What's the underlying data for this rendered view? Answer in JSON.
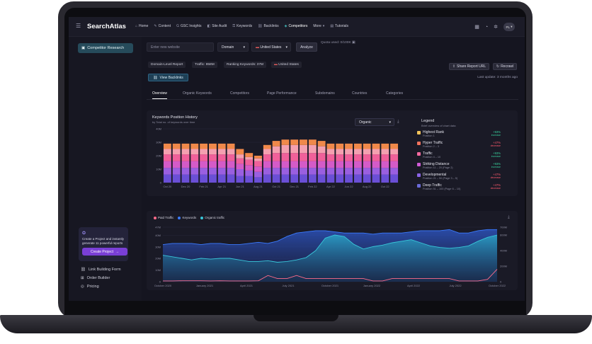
{
  "app": {
    "name": "SearchAtlas"
  },
  "nav": {
    "items": [
      {
        "label": "Home",
        "icon": "home-icon"
      },
      {
        "label": "Content",
        "icon": "pen-icon"
      },
      {
        "label": "GSC Insights",
        "icon": "google-icon"
      },
      {
        "label": "Site Audit",
        "icon": "audit-icon"
      },
      {
        "label": "Keywords",
        "icon": "key-icon"
      },
      {
        "label": "Backlinks",
        "icon": "link-icon"
      },
      {
        "label": "Competitors",
        "icon": "competitors-icon",
        "active": true
      },
      {
        "label": "More",
        "icon": "chevron-down-icon"
      },
      {
        "label": "Tutorials",
        "icon": "book-icon"
      }
    ],
    "avatar": "PL"
  },
  "sidebar": {
    "active_item": "Competitor Research",
    "promo_text": "Create a Project and instantly generate 11 powerful reports",
    "promo_button": "Create Project",
    "links": [
      "Link Building Form",
      "Order Builder",
      "Pricing"
    ]
  },
  "search": {
    "placeholder": "Enter new website",
    "scope": "Domain",
    "country": "United States",
    "analyze": "Analyze",
    "quota": "Quota used: 0/100K"
  },
  "summary": {
    "chips": [
      "Domain-Level Report",
      "Traffic: 858M",
      "Ranking Keywords: 37M",
      "United States"
    ],
    "share": "Share Report URL",
    "recrawl": "Recrawl",
    "updated": "Last update: 3 months ago",
    "view_backlinks": "View Backlinks"
  },
  "tabs": [
    "Overview",
    "Organic Keywords",
    "Competitors",
    "Page Performance",
    "Subdomains",
    "Countries",
    "Categories"
  ],
  "kph": {
    "title": "Keywords Position History",
    "subtitle": "by Total no. of keywords over time",
    "dropdown": "Organic",
    "legend_title": "Legend",
    "legend_subtitle": "Brief overview of chart data",
    "legend": [
      {
        "name": "Highest Rank",
        "pos": "Position 1",
        "pct": "+93%",
        "dir": "increase",
        "color": "#f2c35a",
        "pct_color": "#38d39f"
      },
      {
        "name": "Hyper Traffic",
        "pos": "Position 2 – 3",
        "pct": "+47%",
        "dir": "decrease",
        "color": "#f2735d",
        "pct_color": "#ff5a6e"
      },
      {
        "name": "Traffic",
        "pos": "Position 4 – 10",
        "pct": "+93%",
        "dir": "increase",
        "color": "#f56aa0",
        "pct_color": "#38d39f"
      },
      {
        "name": "Striking Distance",
        "pos": "Position 11 – 20 (Page 2)",
        "pct": "+93%",
        "dir": "increase",
        "color": "#d05bd6",
        "pct_color": "#38d39f"
      },
      {
        "name": "Developmental",
        "pos": "Position 21 – 50 (Page 3 – 5)",
        "pct": "+47%",
        "dir": "decrease",
        "color": "#8a63e6",
        "pct_color": "#ff5a6e"
      },
      {
        "name": "Deep Traffic",
        "pos": "Position 51 – 100 (Page 6 – 10)",
        "pct": "+47%",
        "dir": "decrease",
        "color": "#6a6ad8",
        "pct_color": "#ff5a6e"
      }
    ]
  },
  "traffic": {
    "legend": [
      {
        "name": "Paid Traffic",
        "color": "#ff6b8a"
      },
      {
        "name": "Keywords",
        "color": "#3b7bff"
      },
      {
        "name": "Organic traffic",
        "color": "#38c6d9"
      }
    ]
  },
  "chart_data": [
    {
      "type": "bar",
      "title": "Keywords Position History",
      "categories": [
        "Oct 20",
        "",
        "Dec 20",
        "",
        "Feb 21",
        "",
        "Apr 21",
        "",
        "Jun 21",
        "",
        "Aug 21",
        "",
        "Oct 21",
        "",
        "Dec 21",
        "",
        "Feb 22",
        "",
        "Apr 22",
        "",
        "Jun 22",
        "",
        "Aug 22",
        "",
        "Oct 22",
        ""
      ],
      "x_ticks": [
        "Oct 20",
        "Dec 20",
        "Feb 21",
        "Apr 21",
        "Jun 21",
        "Aug 21",
        "Oct 21",
        "Dec 21",
        "Feb 22",
        "Apr 22",
        "Jun 22",
        "Aug 22",
        "Oct 22"
      ],
      "y_ticks": [
        "0",
        "10M",
        "20M",
        "30M",
        "40M"
      ],
      "ylim": [
        0,
        40
      ],
      "stacked": true,
      "series": [
        {
          "name": "Deep Traffic",
          "color": "#6a4fd6",
          "values": [
            6,
            6,
            6,
            6,
            6,
            6,
            6,
            6,
            5,
            5,
            4,
            6,
            6,
            6,
            6,
            6,
            6,
            6,
            6,
            6,
            6,
            6,
            6,
            6,
            6,
            6
          ]
        },
        {
          "name": "Developmental",
          "color": "#9a5fe0",
          "values": [
            5,
            5,
            5,
            5,
            5,
            5,
            5,
            5,
            5,
            4,
            4,
            5,
            5,
            5,
            5,
            5,
            5,
            5,
            5,
            5,
            5,
            5,
            5,
            5,
            5,
            5
          ]
        },
        {
          "name": "Striking Distance",
          "color": "#d45bc8",
          "values": [
            5,
            5,
            5,
            5,
            5,
            5,
            5,
            5,
            4,
            4,
            4,
            5,
            5,
            5,
            5,
            5,
            5,
            5,
            5,
            5,
            5,
            5,
            5,
            5,
            5,
            5
          ]
        },
        {
          "name": "Traffic",
          "color": "#f0609a",
          "values": [
            5,
            5,
            5,
            5,
            5,
            5,
            5,
            5,
            4,
            4,
            4,
            5,
            6,
            6,
            6,
            6,
            6,
            6,
            5,
            5,
            5,
            5,
            5,
            5,
            5,
            5
          ]
        },
        {
          "name": "Hyper Traffic",
          "color": "#f4a0b0",
          "values": [
            4,
            4,
            4,
            4,
            4,
            4,
            4,
            4,
            3,
            2,
            2,
            4,
            5,
            6,
            6,
            6,
            6,
            5,
            4,
            4,
            4,
            4,
            4,
            4,
            4,
            4
          ]
        },
        {
          "name": "Highest Rank",
          "color": "#f0894a",
          "values": [
            4,
            4,
            4,
            4,
            4,
            4,
            4,
            4,
            4,
            3,
            2,
            3,
            4,
            4,
            4,
            4,
            4,
            4,
            4,
            4,
            4,
            4,
            4,
            4,
            4,
            4
          ]
        }
      ]
    },
    {
      "type": "area",
      "x_ticks": [
        "October 2020",
        "January 2021",
        "April 2021",
        "July 2021",
        "October 2021",
        "January 2022",
        "April 2022",
        "July 2022",
        "October 2022"
      ],
      "y_ticks_left": [
        "0",
        "10M",
        "20M",
        "30M",
        "40M",
        "47M"
      ],
      "y_ticks_right": [
        "0",
        "200M",
        "400M",
        "600M",
        "700M"
      ],
      "ylim_left": [
        0,
        47
      ],
      "ylim_right": [
        0,
        700
      ],
      "series": [
        {
          "name": "Keywords",
          "axis": "left",
          "values": [
            32,
            33,
            33,
            33,
            32,
            33,
            33,
            32,
            32,
            33,
            34,
            33,
            35,
            39,
            42,
            43,
            44,
            44,
            43,
            42,
            42,
            42,
            41,
            42,
            42,
            42,
            43,
            44,
            44,
            44,
            45,
            42,
            42,
            44,
            45,
            45
          ]
        },
        {
          "name": "Organic traffic",
          "axis": "right",
          "values": [
            340,
            320,
            300,
            280,
            300,
            290,
            300,
            300,
            280,
            260,
            260,
            270,
            250,
            260,
            280,
            310,
            400,
            560,
            600,
            580,
            480,
            420,
            450,
            470,
            500,
            520,
            540,
            500,
            460,
            440,
            430,
            440,
            460,
            520,
            570,
            600
          ]
        },
        {
          "name": "Paid Traffic",
          "axis": "right",
          "values": [
            10,
            10,
            12,
            12,
            12,
            10,
            12,
            10,
            10,
            10,
            12,
            80,
            40,
            40,
            80,
            40,
            40,
            40,
            40,
            40,
            40,
            40,
            10,
            10,
            40,
            40,
            40,
            40,
            40,
            40,
            40,
            10,
            10,
            10,
            30,
            160
          ]
        }
      ]
    }
  ]
}
